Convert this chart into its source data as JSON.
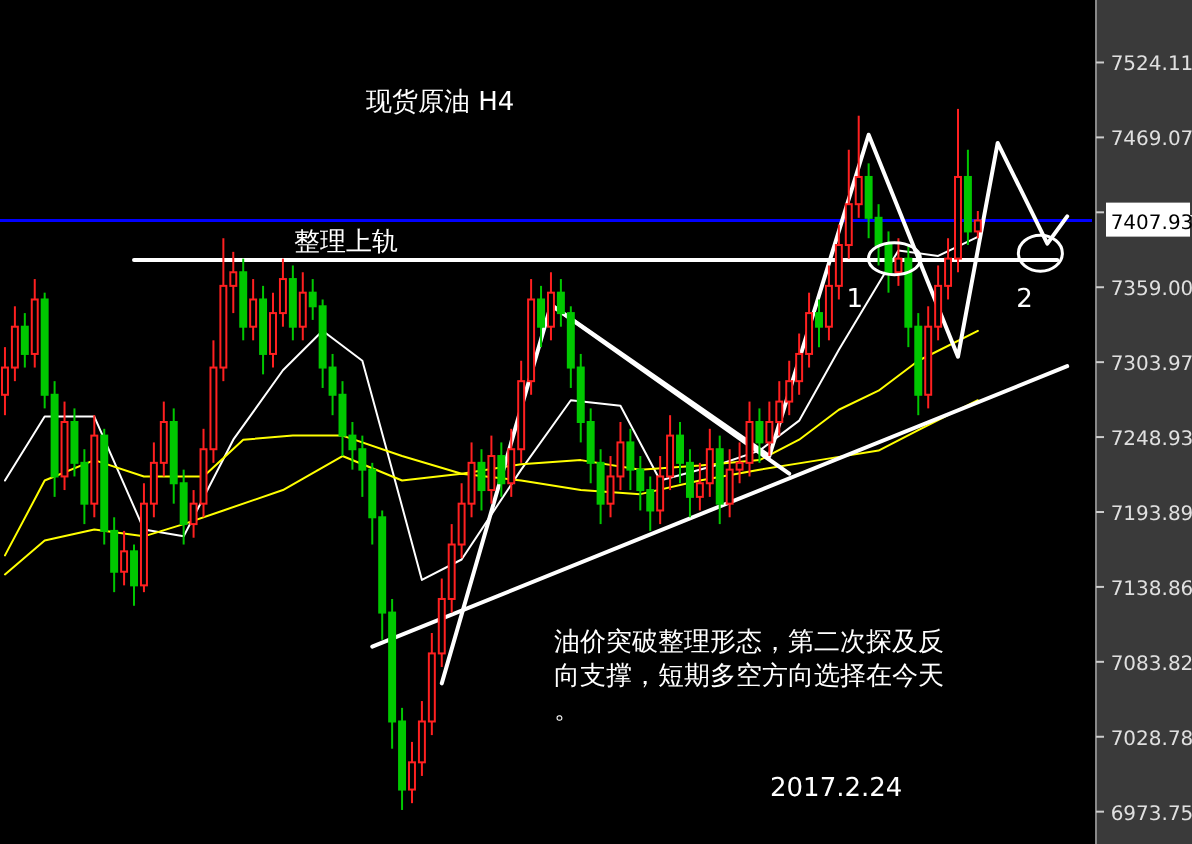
{
  "chart_data": {
    "type": "candlestick",
    "title": "现货原油 H4",
    "categories": [
      null,
      null,
      null,
      null,
      null,
      null,
      null,
      null,
      null,
      null,
      null,
      null,
      null,
      null,
      null,
      null,
      null,
      null,
      null,
      null,
      null,
      null,
      null,
      null,
      null,
      null,
      null,
      null,
      null,
      null,
      null,
      null,
      null,
      null,
      null,
      null,
      null,
      null,
      null,
      null,
      null,
      null,
      null,
      null,
      null,
      null,
      null,
      null,
      null,
      null,
      null,
      null,
      null,
      null,
      null,
      null,
      null,
      null,
      null,
      null,
      null,
      null,
      null,
      null,
      null,
      null,
      null,
      null,
      null,
      null,
      null,
      null,
      null,
      null,
      null,
      null,
      null,
      null,
      null,
      null,
      null,
      null,
      null,
      null,
      null,
      null,
      null,
      null,
      null,
      null,
      null,
      null,
      null,
      null,
      null,
      null,
      null,
      null,
      null,
      null,
      null,
      null,
      null,
      null,
      null,
      null,
      null,
      null,
      null,
      null
    ],
    "ohlc": [
      [
        7280,
        7315,
        7265,
        7300
      ],
      [
        7300,
        7345,
        7290,
        7330
      ],
      [
        7330,
        7340,
        7300,
        7310
      ],
      [
        7310,
        7365,
        7300,
        7350
      ],
      [
        7350,
        7355,
        7270,
        7280
      ],
      [
        7280,
        7290,
        7205,
        7220
      ],
      [
        7220,
        7275,
        7210,
        7260
      ],
      [
        7260,
        7270,
        7220,
        7230
      ],
      [
        7230,
        7240,
        7185,
        7200
      ],
      [
        7200,
        7265,
        7190,
        7250
      ],
      [
        7250,
        7255,
        7170,
        7180
      ],
      [
        7180,
        7190,
        7135,
        7150
      ],
      [
        7150,
        7180,
        7140,
        7165
      ],
      [
        7165,
        7170,
        7125,
        7140
      ],
      [
        7140,
        7215,
        7135,
        7200
      ],
      [
        7200,
        7245,
        7190,
        7230
      ],
      [
        7230,
        7275,
        7220,
        7260
      ],
      [
        7260,
        7270,
        7200,
        7215
      ],
      [
        7215,
        7225,
        7170,
        7185
      ],
      [
        7185,
        7210,
        7175,
        7200
      ],
      [
        7200,
        7255,
        7190,
        7240
      ],
      [
        7240,
        7320,
        7230,
        7300
      ],
      [
        7300,
        7395,
        7290,
        7360
      ],
      [
        7360,
        7385,
        7340,
        7370
      ],
      [
        7370,
        7380,
        7320,
        7330
      ],
      [
        7330,
        7365,
        7320,
        7350
      ],
      [
        7350,
        7360,
        7295,
        7310
      ],
      [
        7310,
        7355,
        7300,
        7340
      ],
      [
        7340,
        7380,
        7330,
        7365
      ],
      [
        7365,
        7375,
        7320,
        7330
      ],
      [
        7330,
        7370,
        7320,
        7355
      ],
      [
        7355,
        7365,
        7335,
        7345
      ],
      [
        7345,
        7350,
        7285,
        7300
      ],
      [
        7300,
        7310,
        7265,
        7280
      ],
      [
        7280,
        7290,
        7235,
        7250
      ],
      [
        7250,
        7260,
        7225,
        7240
      ],
      [
        7240,
        7250,
        7205,
        7225
      ],
      [
        7225,
        7230,
        7170,
        7190
      ],
      [
        7190,
        7195,
        7100,
        7120
      ],
      [
        7120,
        7130,
        7020,
        7040
      ],
      [
        7040,
        7050,
        6975,
        6990
      ],
      [
        6990,
        7025,
        6980,
        7010
      ],
      [
        7010,
        7055,
        7000,
        7040
      ],
      [
        7040,
        7105,
        7030,
        7090
      ],
      [
        7090,
        7145,
        7080,
        7130
      ],
      [
        7130,
        7185,
        7120,
        7170
      ],
      [
        7170,
        7215,
        7160,
        7200
      ],
      [
        7200,
        7245,
        7190,
        7230
      ],
      [
        7230,
        7240,
        7195,
        7210
      ],
      [
        7210,
        7250,
        7200,
        7235
      ],
      [
        7235,
        7245,
        7205,
        7215
      ],
      [
        7215,
        7255,
        7205,
        7240
      ],
      [
        7240,
        7305,
        7230,
        7290
      ],
      [
        7290,
        7365,
        7280,
        7350
      ],
      [
        7350,
        7360,
        7315,
        7330
      ],
      [
        7330,
        7370,
        7320,
        7355
      ],
      [
        7355,
        7365,
        7330,
        7340
      ],
      [
        7340,
        7345,
        7285,
        7300
      ],
      [
        7300,
        7310,
        7245,
        7260
      ],
      [
        7260,
        7270,
        7215,
        7230
      ],
      [
        7230,
        7240,
        7185,
        7200
      ],
      [
        7200,
        7235,
        7190,
        7220
      ],
      [
        7220,
        7260,
        7210,
        7245
      ],
      [
        7245,
        7255,
        7210,
        7225
      ],
      [
        7225,
        7235,
        7195,
        7210
      ],
      [
        7210,
        7220,
        7180,
        7195
      ],
      [
        7195,
        7235,
        7185,
        7220
      ],
      [
        7220,
        7265,
        7210,
        7250
      ],
      [
        7250,
        7260,
        7215,
        7230
      ],
      [
        7230,
        7240,
        7190,
        7205
      ],
      [
        7205,
        7230,
        7195,
        7215
      ],
      [
        7215,
        7255,
        7205,
        7240
      ],
      [
        7240,
        7250,
        7185,
        7200
      ],
      [
        7200,
        7240,
        7190,
        7225
      ],
      [
        7225,
        7245,
        7215,
        7230
      ],
      [
        7230,
        7275,
        7220,
        7260
      ],
      [
        7260,
        7270,
        7230,
        7245
      ],
      [
        7245,
        7275,
        7235,
        7260
      ],
      [
        7260,
        7290,
        7250,
        7275
      ],
      [
        7275,
        7305,
        7265,
        7290
      ],
      [
        7290,
        7325,
        7280,
        7310
      ],
      [
        7310,
        7355,
        7300,
        7340
      ],
      [
        7340,
        7350,
        7315,
        7330
      ],
      [
        7330,
        7375,
        7320,
        7360
      ],
      [
        7360,
        7405,
        7350,
        7390
      ],
      [
        7390,
        7460,
        7380,
        7420
      ],
      [
        7420,
        7485,
        7410,
        7440
      ],
      [
        7440,
        7450,
        7395,
        7410
      ],
      [
        7410,
        7420,
        7375,
        7390
      ],
      [
        7390,
        7400,
        7355,
        7370
      ],
      [
        7370,
        7395,
        7360,
        7380
      ],
      [
        7380,
        7390,
        7315,
        7330
      ],
      [
        7330,
        7340,
        7265,
        7280
      ],
      [
        7280,
        7345,
        7270,
        7330
      ],
      [
        7330,
        7375,
        7320,
        7360
      ],
      [
        7360,
        7395,
        7350,
        7380
      ],
      [
        7380,
        7490,
        7370,
        7440
      ],
      [
        7440,
        7460,
        7390,
        7400
      ],
      [
        7400,
        7415,
        7395,
        7408
      ],
      null,
      null,
      null,
      null,
      null,
      null,
      null,
      null,
      null,
      null,
      null
    ],
    "colors": [
      "#ff2020",
      "#ff2020",
      "#00c800",
      "#ff2020",
      "#00c800",
      "#00c800",
      "#ff2020",
      "#00c800",
      "#00c800",
      "#ff2020",
      "#00c800",
      "#00c800",
      "#ff2020",
      "#00c800",
      "#ff2020",
      "#ff2020",
      "#ff2020",
      "#00c800",
      "#00c800",
      "#ff2020",
      "#ff2020",
      "#ff2020",
      "#ff2020",
      "#ff2020",
      "#00c800",
      "#ff2020",
      "#00c800",
      "#ff2020",
      "#ff2020",
      "#00c800",
      "#ff2020",
      "#00c800",
      "#00c800",
      "#00c800",
      "#00c800",
      "#00c800",
      "#00c800",
      "#00c800",
      "#00c800",
      "#00c800",
      "#00c800",
      "#ff2020",
      "#ff2020",
      "#ff2020",
      "#ff2020",
      "#ff2020",
      "#ff2020",
      "#ff2020",
      "#00c800",
      "#ff2020",
      "#00c800",
      "#ff2020",
      "#ff2020",
      "#ff2020",
      "#00c800",
      "#ff2020",
      "#00c800",
      "#00c800",
      "#00c800",
      "#00c800",
      "#00c800",
      "#ff2020",
      "#ff2020",
      "#00c800",
      "#00c800",
      "#00c800",
      "#ff2020",
      "#ff2020",
      "#00c800",
      "#00c800",
      "#ff2020",
      "#ff2020",
      "#00c800",
      "#ff2020",
      "#ff2020",
      "#ff2020",
      "#00c800",
      "#ff2020",
      "#ff2020",
      "#ff2020",
      "#ff2020",
      "#ff2020",
      "#00c800",
      "#ff2020",
      "#ff2020",
      "#ff2020",
      "#ff2020",
      "#00c800",
      "#00c800",
      "#00c800",
      "#ff2020",
      "#00c800",
      "#00c800",
      "#ff2020",
      "#ff2020",
      "#ff2020",
      "#ff2020",
      "#00c800",
      "#ff2020",
      null,
      null,
      null,
      null,
      null,
      null,
      null,
      null,
      null,
      null,
      null
    ],
    "series": [
      {
        "type": "line",
        "color": "#ffffff",
        "values": [
          7217,
          null,
          null,
          null,
          7264,
          null,
          null,
          null,
          null,
          7264,
          null,
          null,
          null,
          null,
          7181,
          null,
          null,
          null,
          7176,
          null,
          null,
          null,
          null,
          7247,
          null,
          null,
          null,
          null,
          7298,
          null,
          null,
          null,
          7327,
          null,
          null,
          null,
          7305,
          null,
          null,
          7225,
          null,
          null,
          7144,
          null,
          null,
          null,
          7159,
          null,
          null,
          null,
          null,
          null,
          7225,
          null,
          null,
          null,
          null,
          7276,
          null,
          null,
          null,
          null,
          7272,
          null,
          null,
          null,
          7217,
          null,
          null,
          null,
          null,
          null,
          7229,
          null,
          null,
          null,
          7239,
          null,
          null,
          null,
          7261,
          null,
          null,
          null,
          7313,
          null,
          null,
          null,
          null,
          null,
          7386,
          null,
          null,
          null,
          7382,
          null,
          null,
          null,
          7396,
          null,
          null,
          null,
          null,
          null,
          null,
          null,
          null,
          null,
          null,
          null
        ]
      },
      {
        "type": "line",
        "color": "#ffff00",
        "values": [
          7162,
          null,
          null,
          null,
          7217,
          null,
          null,
          null,
          null,
          7232,
          null,
          null,
          null,
          null,
          7220,
          null,
          null,
          null,
          null,
          null,
          7220,
          null,
          null,
          null,
          7247,
          null,
          null,
          null,
          null,
          7250,
          null,
          null,
          null,
          null,
          7250,
          null,
          null,
          null,
          null,
          null,
          7235,
          null,
          null,
          null,
          null,
          null,
          7222,
          null,
          null,
          null,
          null,
          null,
          7229,
          null,
          null,
          null,
          null,
          null,
          7232,
          null,
          null,
          null,
          null,
          null,
          7225,
          null,
          null,
          null,
          null,
          null,
          7228,
          null,
          null,
          null,
          null,
          null,
          7232,
          null,
          null,
          null,
          7247,
          null,
          null,
          null,
          7269,
          null,
          null,
          null,
          7283,
          null,
          null,
          null,
          7305,
          null,
          null,
          null,
          null,
          null,
          7327,
          null,
          null,
          null,
          null,
          null,
          null,
          null,
          null,
          null,
          null,
          null
        ]
      },
      {
        "type": "line",
        "color": "#ffff00",
        "values": [
          7148,
          null,
          null,
          null,
          7173,
          null,
          null,
          null,
          null,
          7181,
          null,
          null,
          null,
          null,
          7176,
          null,
          null,
          null,
          7185,
          null,
          null,
          null,
          7195,
          null,
          null,
          null,
          null,
          null,
          7210,
          null,
          null,
          null,
          null,
          null,
          7235,
          null,
          null,
          null,
          null,
          null,
          7217,
          null,
          null,
          null,
          null,
          null,
          7222,
          null,
          null,
          null,
          null,
          null,
          7217,
          null,
          null,
          null,
          null,
          null,
          7210,
          null,
          null,
          null,
          null,
          null,
          7207,
          null,
          null,
          null,
          null,
          null,
          7217,
          null,
          null,
          null,
          null,
          null,
          7225,
          null,
          null,
          null,
          null,
          null,
          7232,
          null,
          null,
          null,
          null,
          null,
          7239,
          null,
          null,
          null,
          7254,
          null,
          null,
          null,
          null,
          null,
          7276,
          null,
          null,
          null,
          null,
          null,
          null,
          null,
          null,
          null,
          null,
          null
        ]
      },
      {
        "type": "line",
        "name": "整理上轨",
        "color": "#ffffff",
        "values": [
          null,
          null,
          null,
          null,
          null,
          null,
          null,
          null,
          null,
          null,
          null,
          null,
          null,
          7379,
          null,
          null,
          null,
          null,
          null,
          null,
          null,
          null,
          null,
          null,
          null,
          null,
          null,
          null,
          null,
          null,
          null,
          null,
          null,
          null,
          null,
          null,
          null,
          null,
          null,
          null,
          null,
          null,
          null,
          null,
          null,
          null,
          null,
          null,
          null,
          null,
          null,
          null,
          null,
          null,
          null,
          null,
          null,
          null,
          null,
          null,
          null,
          null,
          null,
          null,
          null,
          null,
          null,
          null,
          null,
          null,
          null,
          null,
          null,
          null,
          null,
          null,
          null,
          null,
          null,
          null,
          null,
          null,
          null,
          null,
          null,
          null,
          null,
          null,
          null,
          null,
          null,
          null,
          null,
          null,
          null,
          null,
          null,
          null,
          null,
          null,
          null,
          null,
          null,
          null,
          null,
          null,
          7379,
          null,
          null,
          null
        ]
      },
      {
        "type": "line",
        "color": "#ffffff",
        "values": [
          null,
          null,
          null,
          null,
          null,
          null,
          null,
          null,
          null,
          null,
          null,
          null,
          null,
          null,
          null,
          null,
          null,
          null,
          null,
          null,
          null,
          null,
          null,
          null,
          null,
          null,
          null,
          null,
          null,
          null,
          null,
          null,
          null,
          null,
          null,
          null,
          null,
          7095,
          null,
          null,
          null,
          null,
          null,
          null,
          null,
          null,
          null,
          null,
          null,
          null,
          null,
          null,
          null,
          null,
          null,
          null,
          null,
          null,
          null,
          null,
          null,
          null,
          null,
          null,
          null,
          null,
          null,
          null,
          null,
          null,
          null,
          null,
          null,
          null,
          null,
          null,
          null,
          null,
          null,
          null,
          null,
          null,
          null,
          null,
          null,
          null,
          null,
          null,
          null,
          null,
          null,
          null,
          null,
          null,
          null,
          null,
          null,
          null,
          null,
          null,
          null,
          null,
          null,
          null,
          null,
          null,
          null,
          7301,
          null,
          null
        ]
      },
      {
        "type": "line",
        "color": "#ffffff",
        "values": [
          null,
          null,
          null,
          null,
          null,
          null,
          null,
          null,
          null,
          null,
          null,
          null,
          null,
          null,
          null,
          null,
          null,
          null,
          null,
          null,
          null,
          null,
          null,
          null,
          null,
          null,
          null,
          null,
          null,
          null,
          null,
          null,
          null,
          null,
          null,
          null,
          null,
          null,
          null,
          null,
          null,
          null,
          null,
          null,
          null,
          null,
          null,
          null,
          null,
          null,
          null,
          null,
          null,
          null,
          null,
          7346,
          null,
          null,
          null,
          null,
          null,
          null,
          null,
          null,
          null,
          null,
          null,
          null,
          null,
          null,
          null,
          null,
          null,
          null,
          null,
          null,
          null,
          null,
          null,
          7222,
          null,
          null,
          null,
          null,
          null,
          null,
          null,
          null,
          null,
          null,
          null,
          null,
          null,
          null,
          null,
          null,
          null,
          null,
          null,
          null,
          null,
          null,
          null,
          null,
          null,
          null,
          null,
          null,
          null,
          null
        ]
      },
      {
        "type": "line",
        "color": "#ffffff",
        "values": [
          null,
          null,
          null,
          null,
          null,
          null,
          null,
          null,
          null,
          null,
          null,
          null,
          null,
          null,
          null,
          null,
          null,
          null,
          null,
          null,
          null,
          null,
          null,
          null,
          null,
          null,
          null,
          null,
          null,
          null,
          null,
          null,
          null,
          null,
          null,
          null,
          null,
          null,
          null,
          null,
          null,
          null,
          null,
          null,
          7068,
          null,
          null,
          null,
          null,
          null,
          null,
          null,
          null,
          null,
          null,
          7346,
          null,
          null,
          null,
          null,
          null,
          null,
          null,
          null,
          null,
          null,
          null,
          null,
          null,
          null,
          null,
          null,
          null,
          null,
          null,
          null,
          null,
          7235,
          null,
          null,
          null,
          null,
          null,
          null,
          null,
          null,
          null,
          7471,
          null,
          null,
          null,
          null,
          null,
          null,
          null,
          null,
          7308,
          null,
          null,
          null,
          7465,
          null,
          null,
          null,
          null,
          7391,
          null,
          7411,
          null,
          null
        ]
      }
    ],
    "ref_lines": [
      {
        "axis": "y",
        "value": 7407.93,
        "label": "7407.93",
        "color": "#0000ff"
      }
    ],
    "ylim": [
      6950,
      7570
    ],
    "yticks": [
      6973.75,
      7028.78,
      7083.82,
      7138.86,
      7193.89,
      7248.93,
      7303.97,
      {
        "value": 7359,
        "label": "7359.00"
      },
      7414.04,
      7469.07,
      7524.11
    ],
    "tick_labels": "y",
    "annotations": [
      "1",
      "2",
      "油价突破整理形态，第二次探及反向支撑，短期多空方向选择在今天。",
      "2017.2.24"
    ]
  }
}
